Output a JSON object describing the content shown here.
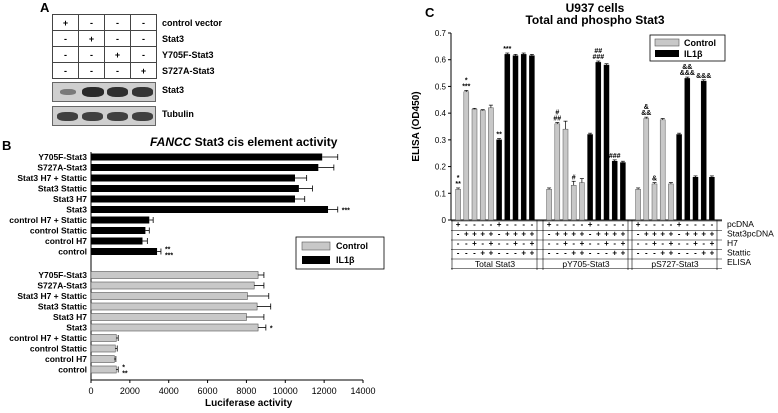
{
  "panelA": {
    "letter": "A",
    "rows": [
      {
        "label": "control vector",
        "signs": [
          "+",
          "-",
          "-",
          "-"
        ]
      },
      {
        "label": "Stat3",
        "signs": [
          "-",
          "+",
          "-",
          "-"
        ]
      },
      {
        "label": "Y705F-Stat3",
        "signs": [
          "-",
          "-",
          "+",
          "-"
        ]
      },
      {
        "label": "S727A-Stat3",
        "signs": [
          "-",
          "-",
          "-",
          "+"
        ]
      }
    ],
    "blots": [
      {
        "label": "Stat3",
        "intensity": [
          0.25,
          1.0,
          0.95,
          0.9
        ]
      },
      {
        "label": "Tubulin",
        "intensity": [
          0.8,
          0.8,
          0.8,
          0.8
        ]
      }
    ]
  },
  "panelB": {
    "letter": "B",
    "title_italic": "FANCC",
    "title_rest": " Stat3 cis element activity",
    "legend": [
      "Control",
      "IL1β"
    ],
    "xlabel": "Luciferase activity",
    "xticks": [
      "0",
      "2000",
      "4000",
      "6000",
      "8000",
      "10000",
      "12000",
      "14000"
    ]
  },
  "panelC": {
    "letter": "C",
    "title_line1": "U937 cells",
    "title_line2": "Total and phospho Stat3",
    "ylabel": "ELISA (OD450)",
    "yticks": [
      "0",
      "0.1",
      "0.2",
      "0.3",
      "0.4",
      "0.5",
      "0.6",
      "0.7"
    ],
    "legend": [
      "Control",
      "IL1β"
    ],
    "row_labels": [
      "pcDNA",
      "Stat3pcDNA",
      "H7",
      "Stattic",
      "ELISA"
    ],
    "group_labels": [
      "Total Stat3",
      "pY705-Stat3",
      "pS727-Stat3"
    ]
  },
  "chart_data": [
    {
      "type": "bar",
      "orientation": "horizontal",
      "title": "FANCC Stat3 cis element activity",
      "xlabel": "Luciferase activity",
      "xlim": [
        0,
        14000
      ],
      "series": [
        {
          "name": "IL1β",
          "color": "#000000",
          "categories": [
            "Y705F-Stat3",
            "S727A-Stat3",
            "Stat3 H7 + Stattic",
            "Stat3 Stattic",
            "Stat3 H7",
            "Stat3",
            "control H7 + Stattic",
            "control Stattic",
            "control H7",
            "control"
          ],
          "values": [
            11900,
            11700,
            10500,
            10700,
            10500,
            12200,
            3000,
            2800,
            2650,
            3400
          ],
          "errors": [
            800,
            800,
            600,
            700,
            500,
            500,
            200,
            200,
            250,
            200
          ],
          "annotations": [
            "",
            "",
            "",
            "",
            "",
            "***",
            "",
            "",
            "",
            "**\n***"
          ]
        },
        {
          "name": "Control",
          "color": "#c8c8c8",
          "categories": [
            "Y705F-Stat3",
            "S727A-Stat3",
            "Stat3 H7 + Stattic",
            "Stat3 Stattic",
            "Stat3 H7",
            "Stat3",
            "control H7 + Stattic",
            "control Stattic",
            "control H7",
            "control"
          ],
          "values": [
            8600,
            8400,
            8050,
            8550,
            8000,
            8600,
            1300,
            1250,
            1200,
            1300
          ],
          "errors": [
            300,
            500,
            1100,
            700,
            900,
            400,
            100,
            100,
            80,
            100
          ],
          "annotations": [
            "",
            "",
            "",
            "",
            "",
            "*",
            "",
            "",
            "",
            "*\n**"
          ]
        }
      ]
    },
    {
      "type": "bar",
      "title": "U937 cells Total and phospho Stat3",
      "ylabel": "ELISA (OD450)",
      "ylim": [
        0,
        0.7
      ],
      "legend": [
        "Control",
        "IL1β"
      ],
      "groups": [
        {
          "name": "Total Stat3",
          "lanes": [
            {
              "pcDNA": "+",
              "Stat3pcDNA": "-",
              "H7": "-",
              "Stattic": "-"
            },
            {
              "pcDNA": "-",
              "Stat3pcDNA": "+",
              "H7": "-",
              "Stattic": "-"
            },
            {
              "pcDNA": "-",
              "Stat3pcDNA": "+",
              "H7": "+",
              "Stattic": "-"
            },
            {
              "pcDNA": "-",
              "Stat3pcDNA": "+",
              "H7": "-",
              "Stattic": "+"
            },
            {
              "pcDNA": "-",
              "Stat3pcDNA": "+",
              "H7": "+",
              "Stattic": "+"
            }
          ],
          "control": [
            0.115,
            0.48,
            0.415,
            0.41,
            0.42
          ],
          "control_err": [
            0.005,
            0.005,
            0.003,
            0.003,
            0.01
          ],
          "il1b": [
            0.3,
            0.62,
            0.615,
            0.62,
            0.615
          ],
          "il1b_err": [
            0.005,
            0.005,
            0.005,
            0.005,
            0.005
          ],
          "control_annot": [
            "*\n**",
            "*\n***",
            "",
            "",
            ""
          ],
          "il1b_annot": [
            "**",
            "***",
            "",
            "",
            ""
          ]
        },
        {
          "name": "pY705-Stat3",
          "lanes": [
            {
              "pcDNA": "+",
              "Stat3pcDNA": "-",
              "H7": "-",
              "Stattic": "-"
            },
            {
              "pcDNA": "-",
              "Stat3pcDNA": "+",
              "H7": "-",
              "Stattic": "-"
            },
            {
              "pcDNA": "-",
              "Stat3pcDNA": "+",
              "H7": "+",
              "Stattic": "-"
            },
            {
              "pcDNA": "-",
              "Stat3pcDNA": "+",
              "H7": "-",
              "Stattic": "+"
            },
            {
              "pcDNA": "-",
              "Stat3pcDNA": "+",
              "H7": "+",
              "Stattic": "+"
            }
          ],
          "control": [
            0.115,
            0.36,
            0.34,
            0.13,
            0.14
          ],
          "control_err": [
            0.005,
            0.005,
            0.03,
            0.015,
            0.015
          ],
          "il1b": [
            0.32,
            0.59,
            0.58,
            0.22,
            0.215
          ],
          "il1b_err": [
            0.005,
            0.005,
            0.005,
            0.005,
            0.005
          ],
          "control_annot": [
            "",
            "#\n##",
            "",
            "#",
            ""
          ],
          "il1b_annot": [
            "",
            "##\n###",
            "",
            "###",
            ""
          ]
        },
        {
          "name": "pS727-Stat3",
          "lanes": [
            {
              "pcDNA": "+",
              "Stat3pcDNA": "-",
              "H7": "-",
              "Stattic": "-"
            },
            {
              "pcDNA": "-",
              "Stat3pcDNA": "+",
              "H7": "-",
              "Stattic": "-"
            },
            {
              "pcDNA": "-",
              "Stat3pcDNA": "+",
              "H7": "+",
              "Stattic": "-"
            },
            {
              "pcDNA": "-",
              "Stat3pcDNA": "+",
              "H7": "-",
              "Stattic": "+"
            },
            {
              "pcDNA": "-",
              "Stat3pcDNA": "+",
              "H7": "+",
              "Stattic": "+"
            }
          ],
          "control": [
            0.115,
            0.38,
            0.135,
            0.375,
            0.135
          ],
          "control_err": [
            0.005,
            0.005,
            0.005,
            0.005,
            0.005
          ],
          "il1b": [
            0.32,
            0.53,
            0.16,
            0.52,
            0.16
          ],
          "il1b_err": [
            0.005,
            0.005,
            0.005,
            0.005,
            0.005
          ],
          "control_annot": [
            "",
            "&\n&&",
            "&",
            "",
            ""
          ],
          "il1b_annot": [
            "",
            "&&\n&&&",
            "",
            "&&&",
            ""
          ]
        }
      ]
    }
  ]
}
